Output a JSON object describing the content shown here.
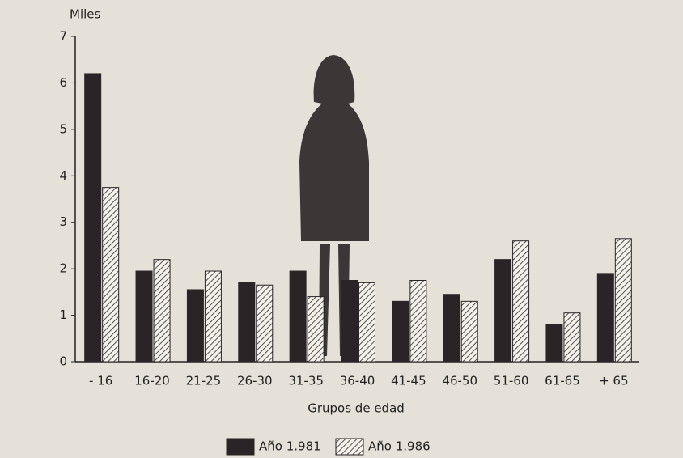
{
  "chart_data": {
    "type": "bar",
    "title": "Miles",
    "x_label": "Grupos de edad",
    "categories": [
      "- 16",
      "16-20",
      "21-25",
      "26-30",
      "31-35",
      "36-40",
      "41-45",
      "46-50",
      "51-60",
      "61-65",
      "+ 65"
    ],
    "series": [
      {
        "name": "Año 1.981",
        "color": "#2a2426",
        "hatch": false,
        "values": [
          6.2,
          1.95,
          1.55,
          1.7,
          1.95,
          1.75,
          1.3,
          1.45,
          2.2,
          0.8,
          1.9
        ]
      },
      {
        "name": "Año 1.986",
        "color": "#2a2426",
        "hatch": true,
        "values": [
          3.75,
          2.2,
          1.95,
          1.65,
          1.4,
          1.7,
          1.75,
          1.3,
          2.6,
          1.05,
          2.65
        ]
      }
    ],
    "ylim": [
      0,
      7
    ],
    "yticks": [
      0,
      1,
      2,
      3,
      4,
      5,
      6,
      7
    ],
    "grid": false,
    "legend": "bottom"
  }
}
